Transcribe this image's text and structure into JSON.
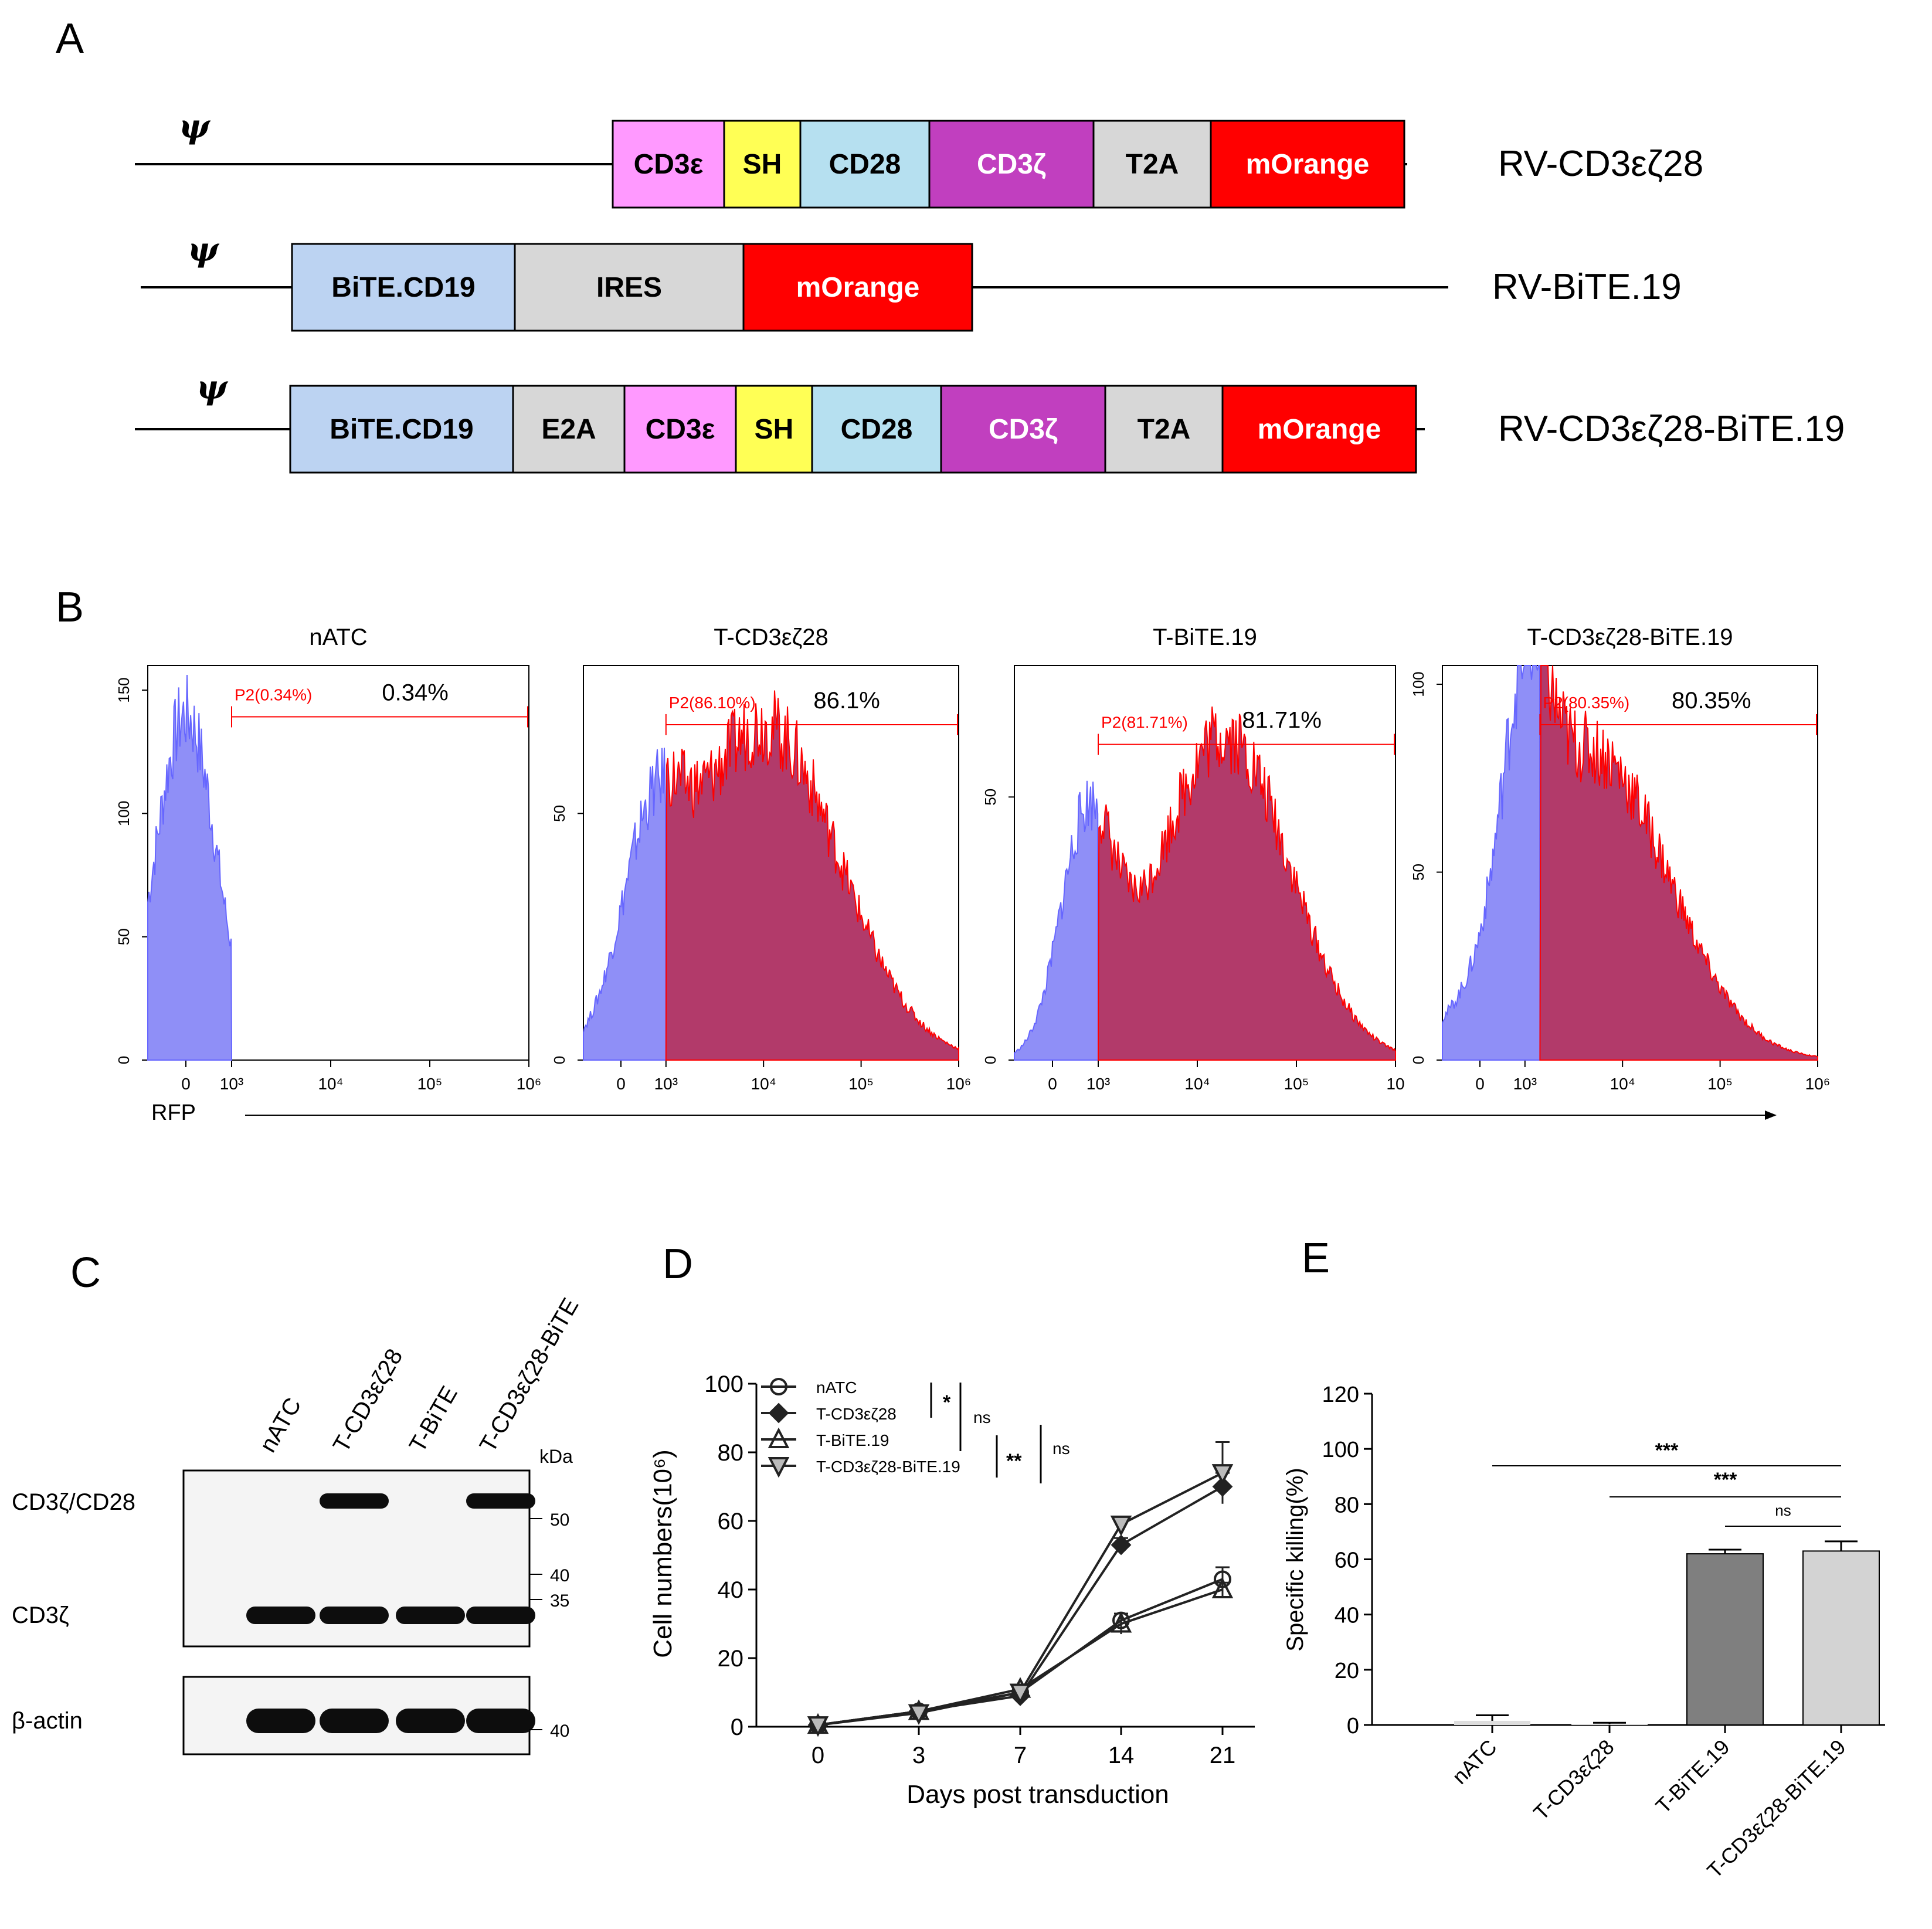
{
  "colors": {
    "cd3e": "#ff99ff",
    "sh": "#ffff55",
    "cd28": "#b6e0f0",
    "cd3z": "#c13fbf",
    "t2a": "#d7d7d7",
    "morange": "#ff0000",
    "bite": "#bcd3f2",
    "ires": "#d7d7d7",
    "e2a": "#d7d7d7",
    "hist_blue": "#6666ff",
    "hist_red": "#ff0000",
    "hist_fill_red": "#b23a6a",
    "gate": "#ff0000",
    "bar_dark": "#7f7f7f",
    "bar_light": "#d3d3d3"
  },
  "panel_a": {
    "label": "A",
    "psi": "ψ",
    "constructs": [
      {
        "name": "RV-CD3εζ28",
        "segments": [
          {
            "label": "CD3ε",
            "color": "cd3e",
            "units": 0.95
          },
          {
            "label": "SH",
            "color": "sh",
            "units": 0.65
          },
          {
            "label": "CD28",
            "color": "cd28",
            "units": 1.1
          },
          {
            "label": "CD3ζ",
            "color": "cd3z",
            "units": 1.4
          },
          {
            "label": "T2A",
            "color": "t2a",
            "units": 1.0
          },
          {
            "label": "mOrange",
            "color": "morange",
            "units": 1.65
          }
        ]
      },
      {
        "name": "RV-BiTE.19",
        "segments": [
          {
            "label": "BiTE.CD19",
            "color": "bite",
            "units": 1.9
          },
          {
            "label": "IRES",
            "color": "ires",
            "units": 1.95
          },
          {
            "label": "mOrange",
            "color": "morange",
            "units": 1.95
          }
        ]
      },
      {
        "name": "RV-CD3εζ28-BiTE.19",
        "segments": [
          {
            "label": "BiTE.CD19",
            "color": "bite",
            "units": 1.9
          },
          {
            "label": "E2A",
            "color": "e2a",
            "units": 0.95
          },
          {
            "label": "CD3ε",
            "color": "cd3e",
            "units": 0.95
          },
          {
            "label": "SH",
            "color": "sh",
            "units": 0.65
          },
          {
            "label": "CD28",
            "color": "cd28",
            "units": 1.1
          },
          {
            "label": "CD3ζ",
            "color": "cd3z",
            "units": 1.4
          },
          {
            "label": "T2A",
            "color": "t2a",
            "units": 1.0
          },
          {
            "label": "mOrange",
            "color": "morange",
            "units": 1.65
          }
        ]
      }
    ]
  },
  "panel_b": {
    "label": "B",
    "x_axis_label": "RFP",
    "histograms": [
      {
        "title": "nATC",
        "gate_label": "P2(0.34%)",
        "percent": "0.34%",
        "ymax": 160,
        "yticks": [
          0,
          50,
          100,
          150
        ],
        "xticks": [
          "0",
          "10³",
          "10⁴",
          "10⁵",
          "10⁶"
        ],
        "peaks": [
          {
            "center": 0.1,
            "width": 0.08,
            "height": 140
          }
        ],
        "gated_fraction": 0.0034
      },
      {
        "title": "T-CD3εζ28",
        "gate_label": "P2(86.10%)",
        "percent": "86.1%",
        "ymax": 80,
        "yticks": [
          0,
          50
        ],
        "xticks": [
          "0",
          "10³",
          "10⁴",
          "10⁵",
          "10⁶"
        ],
        "peaks": [
          {
            "center": 0.18,
            "width": 0.08,
            "height": 32
          },
          {
            "center": 0.48,
            "width": 0.2,
            "height": 68
          }
        ],
        "gated_fraction": 0.861
      },
      {
        "title": "T-BiTE.19",
        "gate_label": "P2(81.71%)",
        "percent": "81.71%",
        "ymax": 75,
        "yticks": [
          0,
          50
        ],
        "xticks": [
          "0",
          "10³",
          "10⁴",
          "10⁵",
          "10"
        ],
        "peaks": [
          {
            "center": 0.19,
            "width": 0.07,
            "height": 42
          },
          {
            "center": 0.55,
            "width": 0.17,
            "height": 62
          }
        ],
        "gated_fraction": 0.8171
      },
      {
        "title": "T-CD3εζ28-BiTE.19",
        "gate_label": "P2(80.35%)",
        "percent": "80.35%",
        "ymax": 105,
        "yticks": [
          0,
          50,
          100
        ],
        "xticks": [
          "0",
          "10³",
          "10⁴",
          "10⁵",
          "10⁶"
        ],
        "peaks": [
          {
            "center": 0.22,
            "width": 0.06,
            "height": 55
          },
          {
            "center": 0.4,
            "width": 0.2,
            "height": 82
          }
        ],
        "gated_fraction": 0.8035
      }
    ]
  },
  "panel_c": {
    "label": "C",
    "lanes": [
      "nATC",
      "T-CD3εζ28",
      "T-BiTE",
      "T-CD3εζ28-BiTE"
    ],
    "kda_label": "kDa",
    "markers_top": [
      "50",
      "40",
      "35"
    ],
    "markers_bottom": [
      "40"
    ],
    "rows": [
      {
        "label": "CD3ζ/CD28",
        "present": [
          false,
          true,
          false,
          true
        ]
      },
      {
        "label": "CD3ζ",
        "present": [
          true,
          true,
          true,
          true
        ]
      },
      {
        "label": "β-actin",
        "present": [
          true,
          true,
          true,
          true
        ]
      }
    ]
  },
  "panel_d": {
    "label": "D",
    "chart_data": {
      "type": "line",
      "title": "",
      "xlabel": "Days post transduction",
      "ylabel": "Cell numbers(10⁶)",
      "x": [
        0,
        3,
        7,
        14,
        21
      ],
      "ylim": [
        0,
        100
      ],
      "yticks": [
        0,
        20,
        40,
        60,
        80,
        100
      ],
      "series": [
        {
          "name": "nATC",
          "marker": "circle",
          "values": [
            0.5,
            4.5,
            10,
            31,
            43
          ],
          "errors": [
            0.5,
            1,
            1,
            2,
            3.5
          ]
        },
        {
          "name": "T-CD3εζ28",
          "marker": "diamond",
          "values": [
            0.5,
            4.5,
            9,
            53,
            70
          ],
          "errors": [
            0.5,
            1,
            1,
            2,
            4
          ]
        },
        {
          "name": "T-BiTE.19",
          "marker": "triangle-up",
          "values": [
            0.5,
            4.5,
            11,
            30,
            40
          ],
          "errors": [
            0.5,
            1,
            1,
            3,
            2
          ]
        },
        {
          "name": "T-CD3εζ28-BiTE.19",
          "marker": "triangle-down",
          "values": [
            0.5,
            4,
            10,
            59,
            74
          ],
          "errors": [
            0.5,
            1,
            1,
            1.5,
            9
          ]
        }
      ],
      "significance": [
        "*",
        "ns",
        "**",
        "ns"
      ]
    }
  },
  "panel_e": {
    "label": "E",
    "chart_data": {
      "type": "bar",
      "categories": [
        "nATC",
        "T-CD3εζ28",
        "T-BiTE.19",
        "T-CD3εζ28-BiTE.19"
      ],
      "values": [
        1.5,
        0.3,
        62,
        63
      ],
      "errors": [
        2,
        0.5,
        1.5,
        3.5
      ],
      "ylabel": "Specific killing(%)",
      "xlabel": "",
      "ylim": [
        0,
        120
      ],
      "yticks": [
        0,
        20,
        40,
        60,
        80,
        100,
        120
      ],
      "significance": [
        "***",
        "***",
        "ns"
      ]
    }
  }
}
